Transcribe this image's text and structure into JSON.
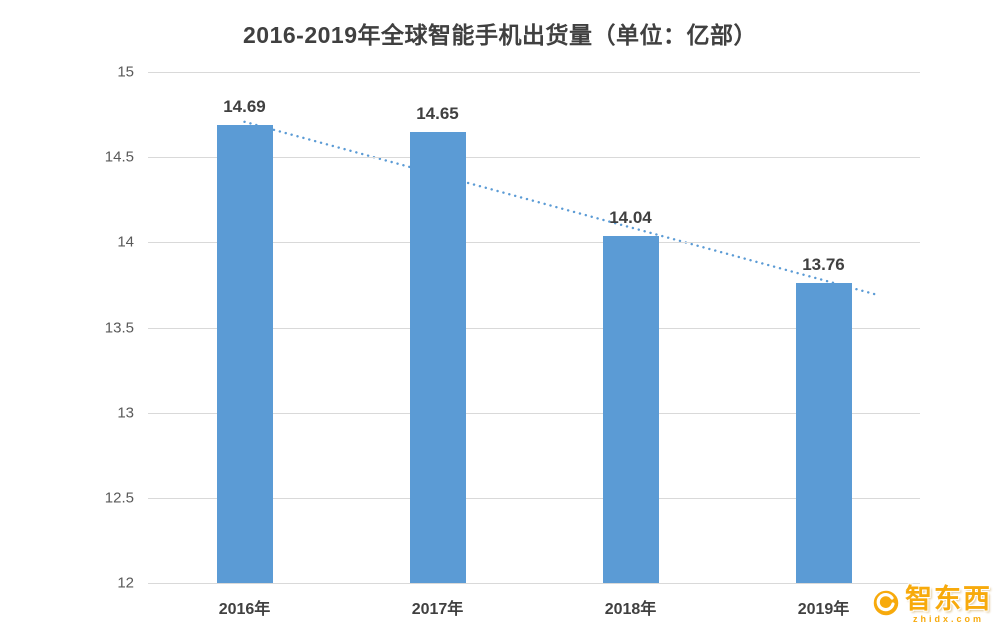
{
  "chart_data": {
    "type": "bar",
    "title": "2016-2019年全球智能手机出货量（单位：亿部）",
    "categories": [
      "2016年",
      "2017年",
      "2018年",
      "2019年"
    ],
    "values": [
      14.69,
      14.65,
      14.04,
      13.76
    ],
    "data_labels": [
      "14.69",
      "14.65",
      "14.04",
      "13.76"
    ],
    "xlabel": "",
    "ylabel": "",
    "ylim": [
      12,
      15
    ],
    "yticks": [
      15,
      14.5,
      14,
      13.5,
      13,
      12.5,
      12
    ],
    "ytick_labels": [
      "15",
      "14.5",
      "14",
      "13.5",
      "13",
      "12.5",
      "12"
    ],
    "grid": true,
    "legend": "none",
    "bar_color": "#5B9BD5",
    "trendline": {
      "style": "dotted",
      "color": "#5B9BD5",
      "from": 14.69,
      "to": 13.76
    }
  },
  "watermark": {
    "text": "智东西",
    "subtext": "zhidx.com",
    "color": "#F7A600"
  }
}
